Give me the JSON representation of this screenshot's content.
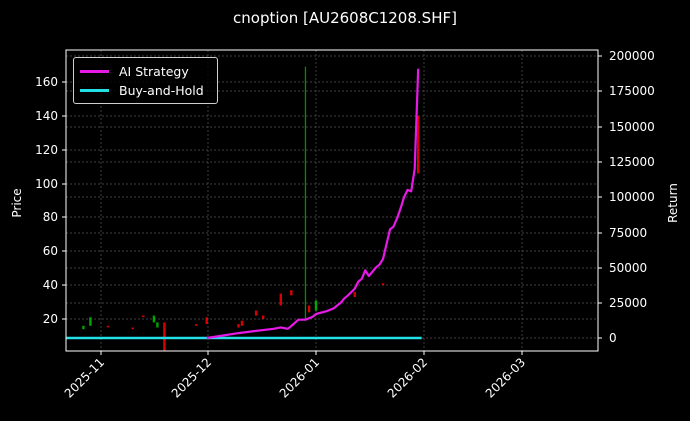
{
  "figure": {
    "title": "cnoption [AU2608C1208.SHF]",
    "background": "#000000"
  },
  "legend": {
    "items": [
      {
        "label": "AI Strategy",
        "color": "#e619e6"
      },
      {
        "label": "Buy-and-Hold",
        "color": "#22e0e6"
      }
    ]
  },
  "axes": {
    "left_label": "Price",
    "right_label": "Return",
    "left_ticks": [
      "20",
      "40",
      "60",
      "80",
      "100",
      "120",
      "140",
      "160"
    ],
    "right_ticks": [
      "0",
      "25000",
      "50000",
      "75000",
      "100000",
      "125000",
      "150000",
      "175000",
      "200000"
    ],
    "x_ticks": [
      "2025-11",
      "2025-12",
      "2026-01",
      "2026-02",
      "2026-03"
    ]
  },
  "chart_data": {
    "type": "line",
    "title": "cnoption [AU2608C1208.SHF]",
    "xlabel": "",
    "ylabel": "Price",
    "y2label": "Return",
    "ylim": [
      1,
      179
    ],
    "y2lim": [
      -9500,
      204000
    ],
    "xlim": [
      "2025-10-22",
      "2026-03-19"
    ],
    "grid": true,
    "legend_position": "upper left",
    "x_tick_labels": [
      "2025-11",
      "2025-12",
      "2026-01",
      "2026-02",
      "2026-03"
    ],
    "series": [
      {
        "name": "AI Strategy",
        "axis": "right",
        "color": "#e619e6",
        "x": [
          "2025-12-01",
          "2025-12-05",
          "2025-12-10",
          "2025-12-15",
          "2025-12-20",
          "2025-12-22",
          "2025-12-24",
          "2025-12-25",
          "2025-12-27",
          "2025-12-29",
          "2025-12-31",
          "2026-01-01",
          "2026-01-04",
          "2026-01-06",
          "2026-01-08",
          "2026-01-09",
          "2026-01-10",
          "2026-01-12",
          "2026-01-13",
          "2026-01-14",
          "2026-01-15",
          "2026-01-16",
          "2026-01-18",
          "2026-01-19",
          "2026-01-20",
          "2026-01-22",
          "2026-01-23",
          "2026-01-24",
          "2026-01-25",
          "2026-01-26",
          "2026-01-27",
          "2026-01-28",
          "2026-01-29",
          "2026-01-30"
        ],
        "values": [
          0,
          1500,
          3500,
          5000,
          6500,
          7500,
          6500,
          8500,
          13000,
          13000,
          15000,
          17000,
          19000,
          21000,
          25000,
          28000,
          30000,
          35000,
          40000,
          42000,
          48000,
          44000,
          50000,
          52000,
          56000,
          77000,
          79000,
          85000,
          92000,
          100000,
          105000,
          104000,
          120000,
          191000
        ]
      },
      {
        "name": "Buy-and-Hold",
        "axis": "right",
        "color": "#22e0e6",
        "x": [
          "2025-10-22",
          "2026-01-31"
        ],
        "values": [
          0,
          0
        ]
      },
      {
        "name": "Price (candlesticks)",
        "axis": "left",
        "type": "candlestick",
        "up_color": "#00c000",
        "down_color": "#ff0000",
        "candles": [
          {
            "date": "2025-10-27",
            "open": 14,
            "close": 16,
            "dir": "up"
          },
          {
            "date": "2025-10-29",
            "open": 16,
            "close": 21,
            "dir": "up"
          },
          {
            "date": "2025-11-03",
            "open": 16,
            "close": 16,
            "dir": "down"
          },
          {
            "date": "2025-11-10",
            "open": 14,
            "close": 15,
            "dir": "down"
          },
          {
            "date": "2025-11-13",
            "open": 22,
            "close": 22,
            "dir": "down"
          },
          {
            "date": "2025-11-16",
            "open": 18,
            "close": 22,
            "dir": "up"
          },
          {
            "date": "2025-11-17",
            "open": 15,
            "close": 18,
            "dir": "up"
          },
          {
            "date": "2025-11-19",
            "open": 1,
            "close": 18,
            "dir": "down"
          },
          {
            "date": "2025-11-28",
            "open": 16,
            "close": 17,
            "dir": "down"
          },
          {
            "date": "2025-12-01",
            "open": 17,
            "close": 21,
            "dir": "down"
          },
          {
            "date": "2025-12-10",
            "open": 15,
            "close": 17,
            "dir": "down"
          },
          {
            "date": "2025-12-11",
            "open": 16,
            "close": 19,
            "dir": "down"
          },
          {
            "date": "2025-12-15",
            "open": 22,
            "close": 25,
            "dir": "down"
          },
          {
            "date": "2025-12-17",
            "open": 20,
            "close": 22,
            "dir": "down"
          },
          {
            "date": "2025-12-22",
            "open": 28,
            "close": 35,
            "dir": "down"
          },
          {
            "date": "2025-12-25",
            "open": 34,
            "close": 37,
            "dir": "down"
          },
          {
            "date": "2025-12-29",
            "open": 20,
            "close": 169,
            "dir": "up"
          },
          {
            "date": "2025-12-30",
            "open": 24,
            "close": 28,
            "dir": "down"
          },
          {
            "date": "2026-01-01",
            "open": 25,
            "close": 31,
            "dir": "up"
          },
          {
            "date": "2026-01-12",
            "open": 33,
            "close": 36,
            "dir": "down"
          },
          {
            "date": "2026-01-20",
            "open": 40,
            "close": 41,
            "dir": "down"
          },
          {
            "date": "2026-01-30",
            "open": 106,
            "close": 140,
            "dir": "down"
          }
        ]
      }
    ]
  }
}
